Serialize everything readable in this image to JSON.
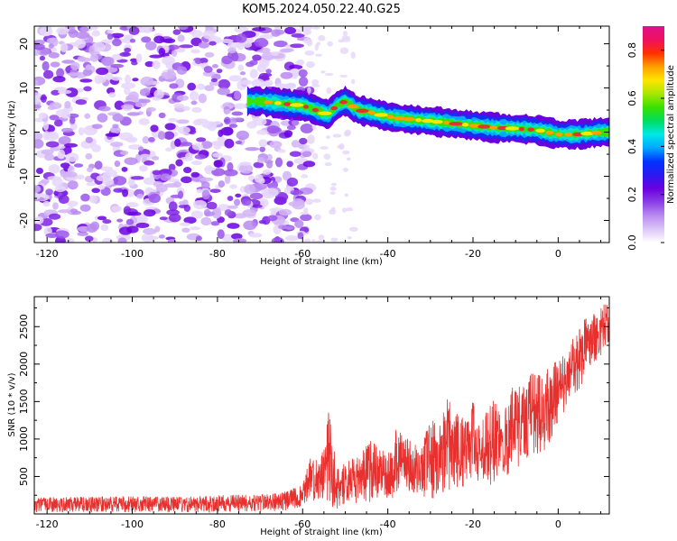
{
  "title": "KOM5.2024.050.22.40.G25",
  "colors": {
    "snr_line": "#e8302e",
    "axis": "#000000",
    "colorbar": [
      "#ffffff",
      "#dcc6f8",
      "#b98af0",
      "#8a3ee6",
      "#6a00e0",
      "#2a1aee",
      "#0033ff",
      "#00a8ff",
      "#00e8e8",
      "#00dd60",
      "#39e000",
      "#a8e600",
      "#ffe600",
      "#ffa000",
      "#ff3000",
      "#ee1060",
      "#e0108a"
    ]
  },
  "chart_data": [
    {
      "type": "heatmap",
      "title": "KOM5.2024.050.22.40.G25",
      "xlabel": "Height of straight line (km)",
      "ylabel": "Frequency (Hz)",
      "xlim": [
        -123,
        12
      ],
      "ylim": [
        -25,
        24
      ],
      "xticks": [
        -120,
        -100,
        -80,
        -60,
        -40,
        -20,
        0
      ],
      "yticks": [
        -20,
        -10,
        0,
        10,
        20
      ],
      "colorbar": {
        "label": "Normalized spectral amplitude",
        "range": [
          0,
          0.9
        ],
        "ticks": [
          0.0,
          0.2,
          0.4,
          0.6,
          0.8
        ]
      },
      "signal_track": {
        "x": [
          -73,
          -70,
          -65,
          -60,
          -57,
          -54,
          -52,
          -50,
          -47,
          -44,
          -40,
          -36,
          -30,
          -25,
          -20,
          -15,
          -10,
          -5,
          0,
          5,
          10,
          12
        ],
        "freq": [
          7,
          7,
          6.5,
          6,
          5,
          4,
          6,
          7,
          5,
          4.5,
          3.5,
          3,
          2.5,
          2,
          1.5,
          1,
          0.8,
          0.5,
          -0.5,
          -0.5,
          0,
          0
        ]
      },
      "noise_region_x": [
        -123,
        -58
      ],
      "grid": false
    },
    {
      "type": "line",
      "xlabel": "Height of straight line (km)",
      "ylabel": "SNR (10 * v/v)",
      "xlim": [
        -123,
        12
      ],
      "ylim": [
        0,
        2900
      ],
      "xticks": [
        -120,
        -100,
        -80,
        -60,
        -40,
        -20,
        0
      ],
      "yticks": [
        500,
        1000,
        1500,
        2000,
        2500
      ],
      "envelope": {
        "x": [
          -123,
          -110,
          -100,
          -90,
          -80,
          -70,
          -64,
          -60,
          -58,
          -56,
          -55,
          -54,
          -52,
          -50,
          -47,
          -44,
          -42,
          -40,
          -38,
          -35,
          -32,
          -30,
          -28,
          -26,
          -24,
          -22,
          -20,
          -18,
          -16,
          -14,
          -12,
          -10,
          -8,
          -6,
          -4,
          -2,
          0,
          2,
          4,
          6,
          8,
          10,
          12
        ],
        "low": [
          20,
          20,
          20,
          20,
          25,
          30,
          40,
          100,
          150,
          150,
          100,
          80,
          70,
          100,
          150,
          150,
          200,
          150,
          200,
          250,
          250,
          150,
          250,
          300,
          350,
          300,
          400,
          450,
          350,
          500,
          500,
          600,
          700,
          800,
          700,
          900,
          1200,
          1400,
          1500,
          1800,
          2000,
          2100,
          2300
        ],
        "high": [
          220,
          230,
          240,
          230,
          250,
          260,
          300,
          400,
          800,
          700,
          900,
          1450,
          600,
          700,
          800,
          1000,
          900,
          800,
          1150,
          1000,
          900,
          1300,
          1150,
          1600,
          1350,
          1300,
          1500,
          1250,
          1600,
          1450,
          1500,
          1800,
          1750,
          1900,
          1850,
          2000,
          2050,
          2200,
          2400,
          2600,
          2700,
          2800,
          2850
        ]
      },
      "grid": false
    }
  ]
}
